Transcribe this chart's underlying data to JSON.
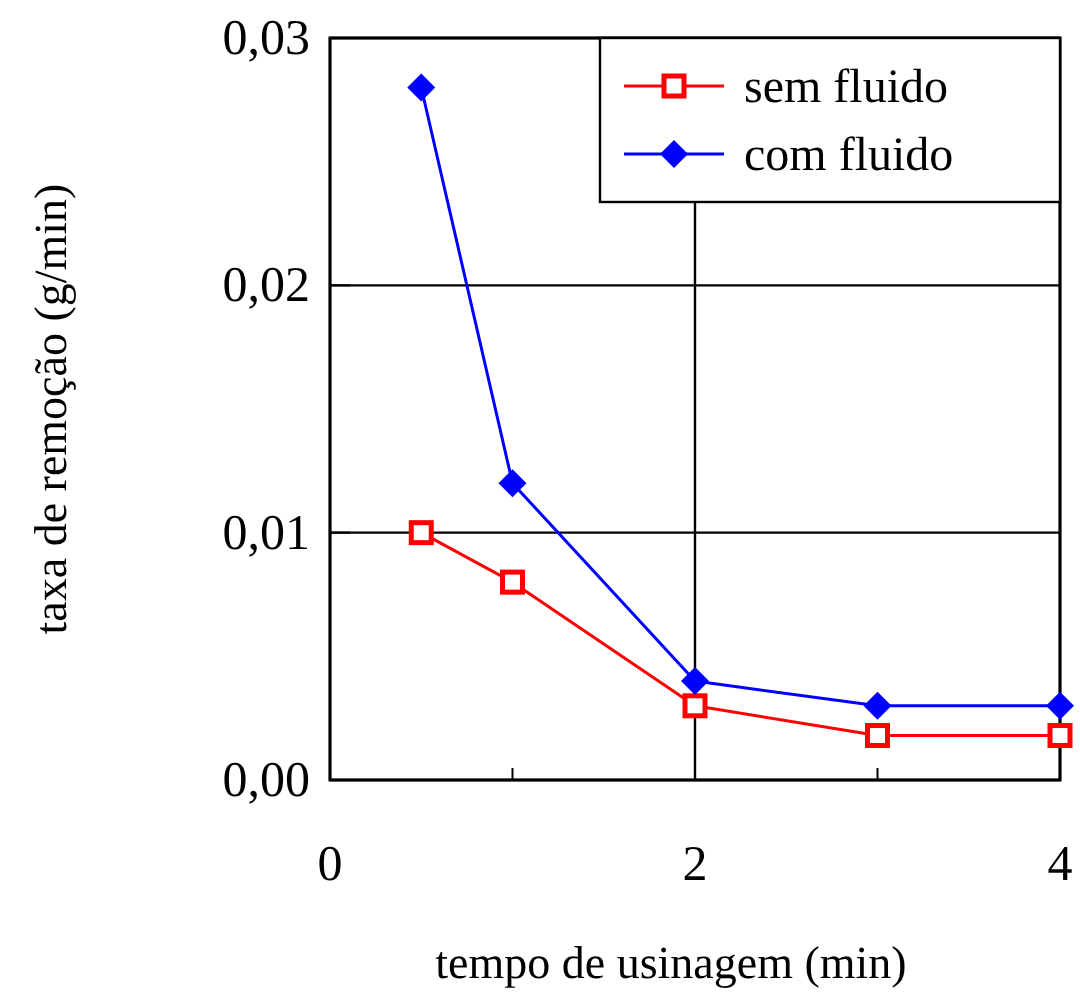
{
  "chart_data": {
    "type": "line",
    "xlabel": "tempo de usinagem (min)",
    "ylabel": "taxa de remoção (g/min)",
    "xlim": [
      0,
      4
    ],
    "xticks": [
      0,
      {
        "value": 1,
        "label": null
      },
      2,
      {
        "value": 3,
        "label": null
      },
      4
    ],
    "ylim": [
      0,
      0.03
    ],
    "yticks": [
      {
        "value": 0,
        "label": "0,00"
      },
      {
        "value": 0.01,
        "label": "0,01"
      },
      {
        "value": 0.02,
        "label": "0,02"
      },
      {
        "value": 0.03,
        "label": "0,03"
      }
    ],
    "grid": true,
    "legend": "top right",
    "series": [
      {
        "name": "sem fluido",
        "color": "#ff0000",
        "marker": "square",
        "x": [
          0.5,
          1,
          2,
          3,
          4
        ],
        "values": [
          0.01,
          0.008,
          0.003,
          0.0018,
          0.0018
        ]
      },
      {
        "name": "com fluido",
        "color": "#0000ff",
        "marker": "diamond",
        "x": [
          0.5,
          1,
          2,
          3,
          4
        ],
        "values": [
          0.028,
          0.012,
          0.004,
          0.003,
          0.003
        ]
      }
    ]
  }
}
